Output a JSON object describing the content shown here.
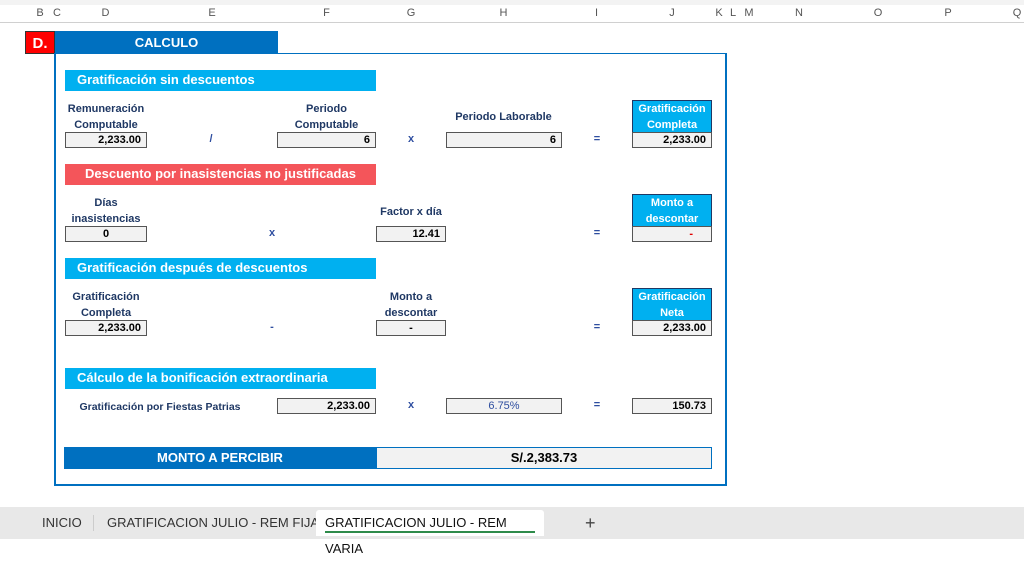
{
  "columns": [
    "B",
    "C",
    "D",
    "E",
    "F",
    "G",
    "H",
    "I",
    "J",
    "K",
    "L",
    "M",
    "N",
    "O",
    "P",
    "Q"
  ],
  "section": {
    "letter": "D.",
    "title": "CALCULO"
  },
  "colors": {
    "dark_blue": "#0070c0",
    "light_blue": "#00b0f0",
    "red_header": "#f4555a",
    "letter_red": "#ff0000"
  },
  "block1": {
    "title": "Gratificación sin descuentos",
    "rem_label": "Remuneración Computable",
    "rem_value": "2,233.00",
    "op1": "/",
    "periodo_label": "Periodo Computable",
    "periodo_value": "6",
    "op2": "x",
    "laborable_label": "Periodo Laborable",
    "laborable_value": "6",
    "eq": "=",
    "result_label": "Gratificación Completa",
    "result_value": "2,233.00"
  },
  "block2": {
    "title": "Descuento por inasistencias no justificadas",
    "dias_label": "Días inasistencias",
    "dias_value": "0",
    "op1": "x",
    "factor_label": "Factor x día",
    "factor_value": "12.41",
    "eq": "=",
    "result_label": "Monto a descontar",
    "result_value": "-"
  },
  "block3": {
    "title": "Gratificación después de descuentos",
    "grat_label": "Gratificación Completa",
    "grat_value": "2,233.00",
    "op1": "-",
    "monto_label": "Monto a descontar",
    "monto_value": "-",
    "eq": "=",
    "result_label": "Gratificación Neta",
    "result_value": "2,233.00"
  },
  "block4": {
    "title": "Cálculo de la bonificación extraordinaria",
    "row_label": "Gratificación por Fiestas Patrias",
    "base_value": "2,233.00",
    "op1": "x",
    "rate_value": "6.75%",
    "eq": "=",
    "result_value": "150.73"
  },
  "total": {
    "label": "MONTO A PERCIBIR",
    "value": "S/.2,383.73"
  },
  "tabs": [
    {
      "label": "INICIO",
      "active": false
    },
    {
      "label": "GRATIFICACION JULIO - REM FIJA",
      "active": false
    },
    {
      "label": "GRATIFICACION JULIO - REM VARIA",
      "active": true
    }
  ],
  "add_sheet": "+"
}
